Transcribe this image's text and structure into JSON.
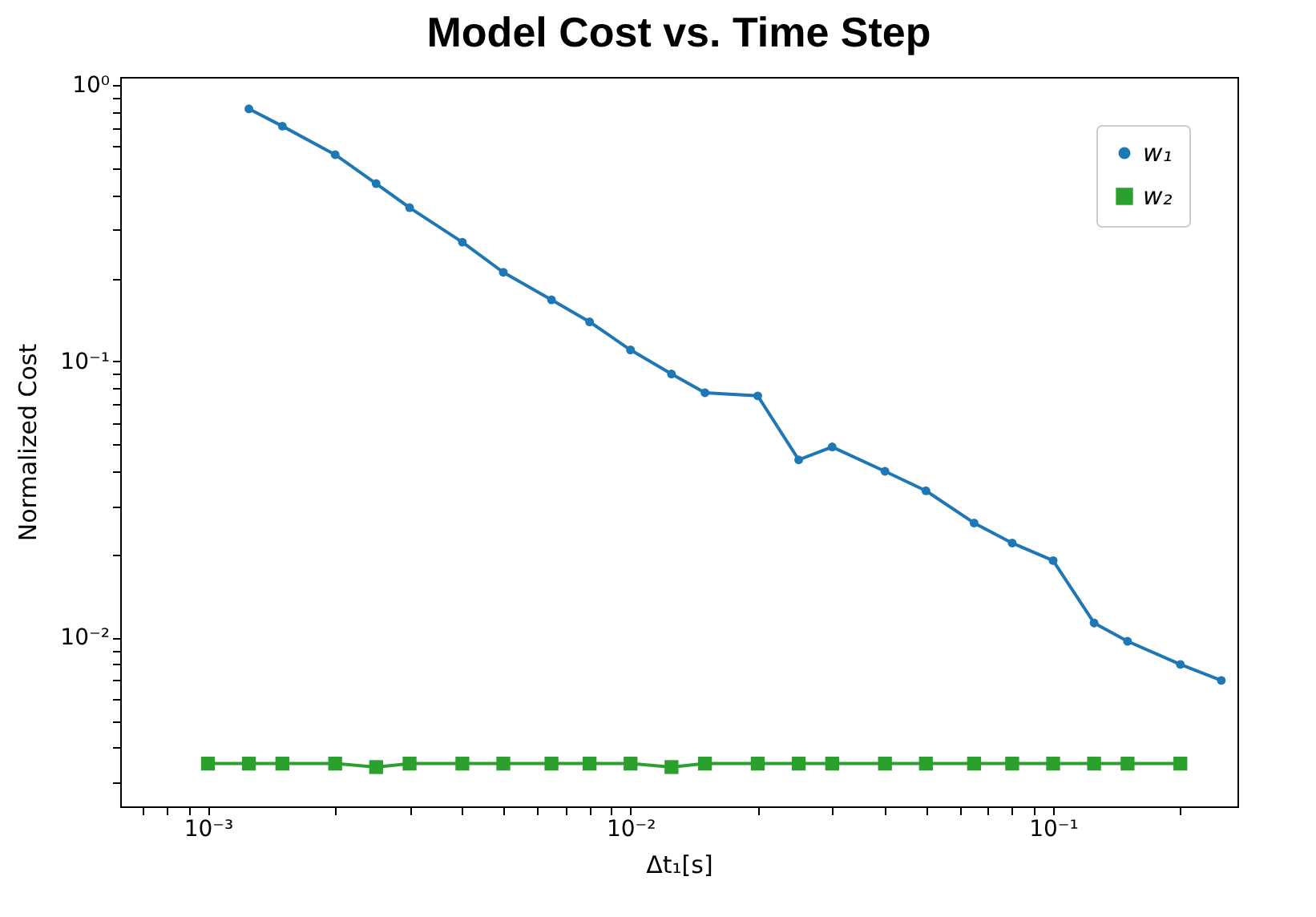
{
  "chart_data": {
    "type": "line",
    "title": "Model Cost vs. Time Step",
    "xlabel": "Δt₁[s]",
    "ylabel": "Normalized Cost",
    "log": "xy",
    "grid": false,
    "legend": "top right",
    "xlim": [
      0.00062,
      0.273
    ],
    "ylim": [
      0.00245,
      1.07
    ],
    "xticks": [
      {
        "value": 0.0007,
        "label": null
      },
      {
        "value": 0.0008,
        "label": null
      },
      {
        "value": 0.0009,
        "label": null
      },
      {
        "value": 0.001,
        "label": "10⁻³"
      },
      {
        "value": 0.002,
        "label": null
      },
      {
        "value": 0.003,
        "label": null
      },
      {
        "value": 0.004,
        "label": null
      },
      {
        "value": 0.005,
        "label": null
      },
      {
        "value": 0.006,
        "label": null
      },
      {
        "value": 0.007,
        "label": null
      },
      {
        "value": 0.008,
        "label": null
      },
      {
        "value": 0.009,
        "label": null
      },
      {
        "value": 0.01,
        "label": "10⁻²"
      },
      {
        "value": 0.02,
        "label": null
      },
      {
        "value": 0.03,
        "label": null
      },
      {
        "value": 0.04,
        "label": null
      },
      {
        "value": 0.05,
        "label": null
      },
      {
        "value": 0.06,
        "label": null
      },
      {
        "value": 0.07,
        "label": null
      },
      {
        "value": 0.08,
        "label": null
      },
      {
        "value": 0.09,
        "label": null
      },
      {
        "value": 0.1,
        "label": "10⁻¹"
      },
      {
        "value": 0.2,
        "label": null
      }
    ],
    "yticks": [
      {
        "value": 0.003,
        "label": null
      },
      {
        "value": 0.004,
        "label": null
      },
      {
        "value": 0.005,
        "label": null
      },
      {
        "value": 0.006,
        "label": null
      },
      {
        "value": 0.007,
        "label": null
      },
      {
        "value": 0.008,
        "label": null
      },
      {
        "value": 0.009,
        "label": null
      },
      {
        "value": 0.01,
        "label": "10⁻²"
      },
      {
        "value": 0.02,
        "label": null
      },
      {
        "value": 0.03,
        "label": null
      },
      {
        "value": 0.04,
        "label": null
      },
      {
        "value": 0.05,
        "label": null
      },
      {
        "value": 0.06,
        "label": null
      },
      {
        "value": 0.07,
        "label": null
      },
      {
        "value": 0.08,
        "label": null
      },
      {
        "value": 0.09,
        "label": null
      },
      {
        "value": 0.1,
        "label": "10⁻¹"
      },
      {
        "value": 0.2,
        "label": null
      },
      {
        "value": 0.3,
        "label": null
      },
      {
        "value": 0.4,
        "label": null
      },
      {
        "value": 0.5,
        "label": null
      },
      {
        "value": 0.6,
        "label": null
      },
      {
        "value": 0.7,
        "label": null
      },
      {
        "value": 0.8,
        "label": null
      },
      {
        "value": 0.9,
        "label": null
      },
      {
        "value": 1,
        "label": "10⁰"
      }
    ],
    "series": [
      {
        "name": "w₁",
        "color": "#1f77b4",
        "marker": "circle",
        "x": [
          0.00125,
          0.0015,
          0.002,
          0.0025,
          0.003,
          0.004,
          0.005,
          0.0065,
          0.008,
          0.01,
          0.0125,
          0.015,
          0.02,
          0.025,
          0.03,
          0.04,
          0.05,
          0.065,
          0.08,
          0.1,
          0.125,
          0.15,
          0.2,
          0.25
        ],
        "values": [
          0.82,
          0.71,
          0.56,
          0.44,
          0.36,
          0.27,
          0.21,
          0.167,
          0.139,
          0.11,
          0.09,
          0.077,
          0.075,
          0.044,
          0.049,
          0.04,
          0.034,
          0.026,
          0.022,
          0.019,
          0.0113,
          0.0097,
          0.008,
          0.007
        ]
      },
      {
        "name": "w₂",
        "color": "#2ca02c",
        "marker": "square",
        "x": [
          0.001,
          0.00125,
          0.0015,
          0.002,
          0.0025,
          0.003,
          0.004,
          0.005,
          0.0065,
          0.008,
          0.01,
          0.0125,
          0.015,
          0.02,
          0.025,
          0.03,
          0.04,
          0.05,
          0.065,
          0.08,
          0.1,
          0.125,
          0.15,
          0.2
        ],
        "values": [
          0.0035,
          0.0035,
          0.0035,
          0.0035,
          0.0034,
          0.0035,
          0.0035,
          0.0035,
          0.0035,
          0.0035,
          0.0035,
          0.0034,
          0.0035,
          0.0035,
          0.0035,
          0.0035,
          0.0035,
          0.0035,
          0.0035,
          0.0035,
          0.0035,
          0.0035,
          0.0035,
          0.0035
        ]
      }
    ]
  }
}
